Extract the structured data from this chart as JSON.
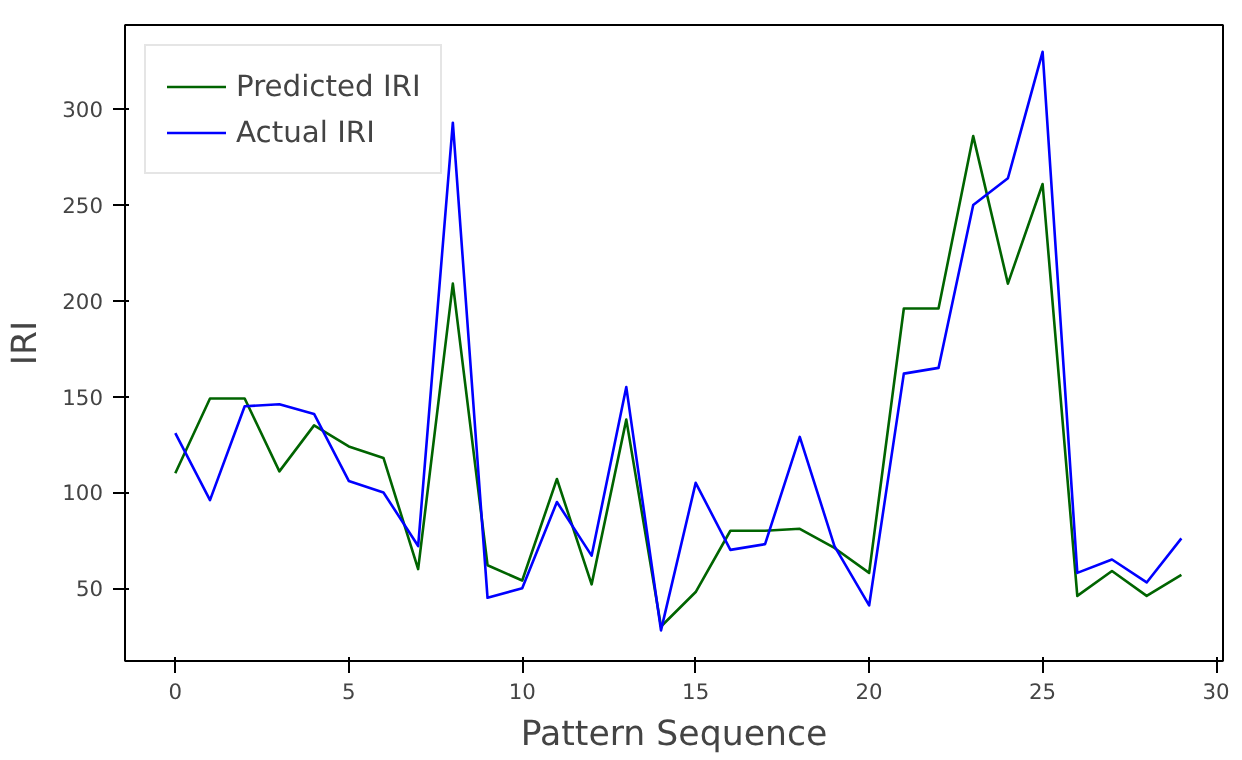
{
  "chart_data": {
    "type": "line",
    "xlabel": "Pattern Sequence",
    "ylabel": "IRI",
    "x": [
      0,
      1,
      2,
      3,
      4,
      5,
      6,
      7,
      8,
      9,
      10,
      11,
      12,
      13,
      14,
      15,
      16,
      17,
      18,
      19,
      20,
      21,
      22,
      23,
      24,
      25,
      26,
      27,
      28,
      29
    ],
    "series": [
      {
        "name": "Predicted IRI",
        "color": "#006400",
        "values": [
          110,
          149,
          149,
          111,
          135,
          124,
          118,
          60,
          209,
          62,
          54,
          107,
          52,
          138,
          30,
          48,
          80,
          80,
          81,
          71,
          58,
          196,
          196,
          286,
          209,
          261,
          46,
          59,
          46,
          57
        ]
      },
      {
        "name": "Actual IRI",
        "color": "#0000ff",
        "values": [
          131,
          96,
          145,
          146,
          141,
          106,
          100,
          72,
          293,
          45,
          50,
          95,
          67,
          155,
          28,
          105,
          70,
          73,
          129,
          72,
          41,
          162,
          165,
          250,
          264,
          330,
          58,
          65,
          53,
          76
        ]
      }
    ],
    "xlim": [
      -1.45,
      30.2
    ],
    "ylim": [
      12,
      344
    ],
    "xticks": [
      0,
      5,
      10,
      15,
      20,
      25,
      30
    ],
    "yticks": [
      50,
      100,
      150,
      200,
      250,
      300
    ],
    "grid": false,
    "legend": "top left"
  }
}
